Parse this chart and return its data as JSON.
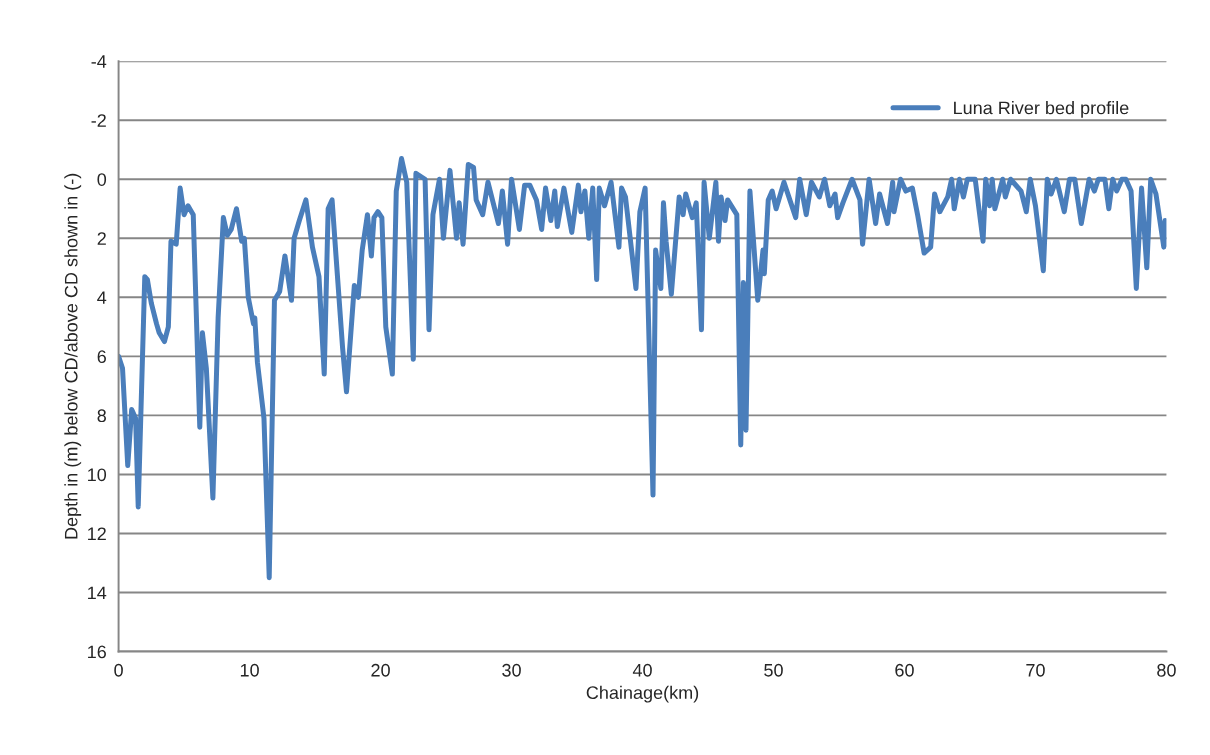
{
  "chart_data": {
    "type": "line",
    "xlabel": "Chainage(km)",
    "ylabel": "Depth in (m) below CD/above CD shown in (-)",
    "xlim": [
      0,
      80
    ],
    "xticks": [
      0,
      10,
      20,
      30,
      40,
      50,
      60,
      70,
      80
    ],
    "ylim": [
      16,
      -4
    ],
    "yticks": [
      -4,
      -2,
      0,
      2,
      4,
      6,
      8,
      10,
      12,
      14,
      16
    ],
    "grid": "y",
    "legend": "top right",
    "marker": "none",
    "line_style": "solid",
    "series": [
      {
        "name": "Luna River bed profile",
        "color": "#4a7ebb",
        "x": [
          0.0,
          0.3,
          0.7,
          1.0,
          1.3,
          1.5,
          2.0,
          2.2,
          2.5,
          2.9,
          3.1,
          3.5,
          3.8,
          4.0,
          4.4,
          4.7,
          5.0,
          5.3,
          5.7,
          6.2,
          6.4,
          6.7,
          7.2,
          7.6,
          8.0,
          8.3,
          8.6,
          9.0,
          9.4,
          9.6,
          9.9,
          10.3,
          10.4,
          10.6,
          11.1,
          11.5,
          11.9,
          12.3,
          12.7,
          13.2,
          13.4,
          13.8,
          14.3,
          14.8,
          15.3,
          15.7,
          16.0,
          16.3,
          16.6,
          17.1,
          17.4,
          18.0,
          18.3,
          18.6,
          19.0,
          19.3,
          19.5,
          19.8,
          20.1,
          20.4,
          20.9,
          21.2,
          21.6,
          22.0,
          22.5,
          22.7,
          23.4,
          23.7,
          24.0,
          24.5,
          24.8,
          25.3,
          25.8,
          26.0,
          26.3,
          26.7,
          27.1,
          27.3,
          27.8,
          28.2,
          29.0,
          29.3,
          29.7,
          30.0,
          30.6,
          31.0,
          31.4,
          31.9,
          32.3,
          32.6,
          33.0,
          33.3,
          33.5,
          34.0,
          34.6,
          35.1,
          35.3,
          35.6,
          35.9,
          36.2,
          36.5,
          36.7,
          37.1,
          37.6,
          38.2,
          38.4,
          38.7,
          39.5,
          39.8,
          40.2,
          40.8,
          41.0,
          41.4,
          41.6,
          41.8,
          42.2,
          42.8,
          43.1,
          43.3,
          43.8,
          44.1,
          44.5,
          44.7,
          45.1,
          45.6,
          45.8,
          46.0,
          46.3,
          46.5,
          47.2,
          47.5,
          47.7,
          47.9,
          48.2,
          48.8,
          49.2,
          49.3,
          49.6,
          49.9,
          50.2,
          50.8,
          51.7,
          52.0,
          52.5,
          52.9,
          53.5,
          53.9,
          54.3,
          54.7,
          54.9,
          55.3,
          56.0,
          56.6,
          56.8,
          57.3,
          57.8,
          58.1,
          58.7,
          59.1,
          59.2,
          59.7,
          60.1,
          60.6,
          61.0,
          61.5,
          62.0,
          62.3,
          62.7,
          63.3,
          63.6,
          63.8,
          64.2,
          64.5,
          64.8,
          65.4,
          66.0,
          66.2,
          66.5,
          66.7,
          66.9,
          67.5,
          67.7,
          68.1,
          68.9,
          69.3,
          69.6,
          70.0,
          70.6,
          70.9,
          71.2,
          71.6,
          72.2,
          72.6,
          73.0,
          73.5,
          74.1,
          74.5,
          74.8,
          75.3,
          75.6,
          75.9,
          76.2,
          76.6,
          76.9,
          77.3,
          77.7,
          78.1,
          78.5,
          78.8,
          79.2,
          79.8,
          79.9,
          80.0
        ],
        "values": [
          6.0,
          6.4,
          9.7,
          7.8,
          8.1,
          11.1,
          3.3,
          3.4,
          4.2,
          4.9,
          5.2,
          5.5,
          5.0,
          2.1,
          2.2,
          0.3,
          1.2,
          0.9,
          1.2,
          8.4,
          5.2,
          6.4,
          10.8,
          4.7,
          1.3,
          1.9,
          1.7,
          1.0,
          2.1,
          2.0,
          4.0,
          4.9,
          4.7,
          6.2,
          8.1,
          13.5,
          4.1,
          3.8,
          2.6,
          4.1,
          2.0,
          1.4,
          0.7,
          2.3,
          3.3,
          6.6,
          1.0,
          0.7,
          2.6,
          5.7,
          7.2,
          3.6,
          4.0,
          2.4,
          1.2,
          2.6,
          1.3,
          1.1,
          1.3,
          5.0,
          6.6,
          0.4,
          -0.7,
          0.1,
          6.1,
          -0.2,
          0.0,
          5.1,
          1.2,
          0.0,
          2.0,
          -0.3,
          2.0,
          0.8,
          2.2,
          -0.5,
          -0.4,
          0.7,
          1.2,
          0.1,
          1.5,
          0.4,
          2.2,
          0.0,
          1.7,
          0.2,
          0.2,
          0.7,
          1.7,
          0.3,
          1.4,
          0.4,
          1.6,
          0.3,
          1.8,
          0.2,
          1.1,
          0.4,
          2.0,
          0.3,
          3.4,
          0.3,
          0.9,
          0.1,
          2.3,
          0.3,
          0.6,
          3.7,
          1.1,
          0.3,
          10.7,
          2.4,
          3.7,
          0.8,
          2.1,
          3.9,
          0.6,
          1.2,
          0.5,
          1.3,
          0.8,
          5.1,
          0.1,
          2.0,
          0.1,
          2.1,
          0.6,
          1.4,
          0.7,
          1.2,
          9.0,
          3.5,
          8.5,
          0.4,
          4.1,
          2.4,
          3.2,
          0.7,
          0.4,
          1.0,
          0.1,
          1.3,
          0.0,
          1.2,
          0.1,
          0.6,
          0.0,
          0.9,
          0.5,
          1.3,
          0.8,
          0.0,
          0.7,
          2.2,
          0.0,
          1.5,
          0.5,
          1.5,
          0.1,
          1.1,
          0.0,
          0.4,
          0.3,
          1.2,
          2.5,
          2.3,
          0.5,
          1.1,
          0.6,
          0.0,
          1.0,
          0.0,
          0.6,
          0.0,
          0.0,
          2.1,
          0.0,
          0.9,
          0.0,
          1.0,
          0.0,
          0.6,
          0.0,
          0.4,
          1.1,
          0.0,
          0.9,
          3.1,
          0.0,
          0.5,
          0.0,
          1.1,
          0.0,
          0.0,
          1.5,
          0.0,
          0.4,
          0.0,
          0.0,
          1.0,
          0.0,
          0.4,
          0.0,
          0.0,
          0.4,
          3.7,
          0.3,
          3.0,
          0.0,
          0.5,
          2.3,
          1.4,
          2.2
        ]
      }
    ]
  }
}
